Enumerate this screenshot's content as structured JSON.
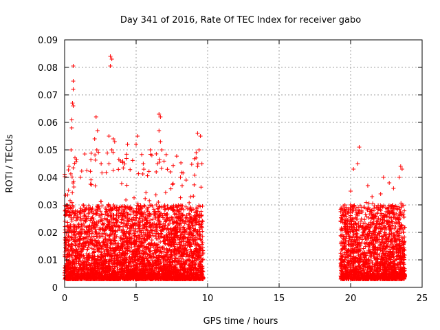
{
  "chart_data": {
    "type": "scatter",
    "title": "Day 341 of 2016, Rate Of TEC Index for receiver gabo",
    "xlabel": "GPS time / hours",
    "ylabel": "ROTI / TECUs",
    "xlim": [
      0,
      25
    ],
    "ylim": [
      0,
      0.09
    ],
    "grid": true,
    "marker": "+",
    "series_color": "#ff0000",
    "x_ticks": [
      0,
      5,
      10,
      15,
      20,
      25
    ],
    "x_tick_labels": [
      "0",
      "5",
      "10",
      "15",
      "20",
      "25"
    ],
    "y_ticks": [
      0,
      0.01,
      0.02,
      0.03,
      0.04,
      0.05,
      0.06,
      0.07,
      0.08,
      0.09
    ],
    "y_tick_labels": [
      "0",
      "0.01",
      "0.02",
      "0.03",
      "0.04",
      "0.05",
      "0.06",
      "0.07",
      "0.08",
      "0.09"
    ],
    "data_segments": [
      {
        "x_start": 0.0,
        "x_end": 9.7,
        "typical_range": [
          0.003,
          0.03
        ],
        "max": 0.084
      },
      {
        "x_start": 19.3,
        "x_end": 23.8,
        "typical_range": [
          0.003,
          0.03
        ],
        "max": 0.051
      }
    ],
    "notable_points": [
      {
        "x": 0.6,
        "y": 0.0805
      },
      {
        "x": 0.6,
        "y": 0.075
      },
      {
        "x": 0.6,
        "y": 0.072
      },
      {
        "x": 0.55,
        "y": 0.067
      },
      {
        "x": 0.6,
        "y": 0.066
      },
      {
        "x": 0.5,
        "y": 0.061
      },
      {
        "x": 0.5,
        "y": 0.058
      },
      {
        "x": 0.45,
        "y": 0.05
      },
      {
        "x": 0.3,
        "y": 0.044
      },
      {
        "x": 1.1,
        "y": 0.04
      },
      {
        "x": 2.2,
        "y": 0.062
      },
      {
        "x": 2.3,
        "y": 0.057
      },
      {
        "x": 2.1,
        "y": 0.054
      },
      {
        "x": 2.25,
        "y": 0.05
      },
      {
        "x": 3.2,
        "y": 0.084
      },
      {
        "x": 3.3,
        "y": 0.083
      },
      {
        "x": 3.2,
        "y": 0.0805
      },
      {
        "x": 3.1,
        "y": 0.055
      },
      {
        "x": 3.4,
        "y": 0.054
      },
      {
        "x": 3.5,
        "y": 0.053
      },
      {
        "x": 3.3,
        "y": 0.05
      },
      {
        "x": 3.1,
        "y": 0.045
      },
      {
        "x": 3.9,
        "y": 0.046
      },
      {
        "x": 4.4,
        "y": 0.052
      },
      {
        "x": 5.1,
        "y": 0.055
      },
      {
        "x": 5.0,
        "y": 0.052
      },
      {
        "x": 5.5,
        "y": 0.045
      },
      {
        "x": 6.0,
        "y": 0.05
      },
      {
        "x": 6.1,
        "y": 0.048
      },
      {
        "x": 6.6,
        "y": 0.063
      },
      {
        "x": 6.7,
        "y": 0.062
      },
      {
        "x": 6.6,
        "y": 0.057
      },
      {
        "x": 6.7,
        "y": 0.053
      },
      {
        "x": 6.8,
        "y": 0.05
      },
      {
        "x": 6.5,
        "y": 0.045
      },
      {
        "x": 7.4,
        "y": 0.042
      },
      {
        "x": 8.1,
        "y": 0.04
      },
      {
        "x": 8.5,
        "y": 0.039
      },
      {
        "x": 9.3,
        "y": 0.056
      },
      {
        "x": 9.5,
        "y": 0.055
      },
      {
        "x": 9.4,
        "y": 0.05
      },
      {
        "x": 9.2,
        "y": 0.049
      },
      {
        "x": 9.6,
        "y": 0.045
      },
      {
        "x": 9.3,
        "y": 0.044
      },
      {
        "x": 20.6,
        "y": 0.051
      },
      {
        "x": 20.5,
        "y": 0.045
      },
      {
        "x": 20.2,
        "y": 0.043
      },
      {
        "x": 20.0,
        "y": 0.035
      },
      {
        "x": 21.2,
        "y": 0.037
      },
      {
        "x": 21.5,
        "y": 0.033
      },
      {
        "x": 22.3,
        "y": 0.04
      },
      {
        "x": 22.7,
        "y": 0.038
      },
      {
        "x": 23.5,
        "y": 0.044
      },
      {
        "x": 23.6,
        "y": 0.043
      },
      {
        "x": 23.4,
        "y": 0.04
      },
      {
        "x": 23.0,
        "y": 0.036
      },
      {
        "x": 22.1,
        "y": 0.034
      },
      {
        "x": 19.6,
        "y": 0.03
      },
      {
        "x": 19.4,
        "y": 0.025
      }
    ]
  }
}
